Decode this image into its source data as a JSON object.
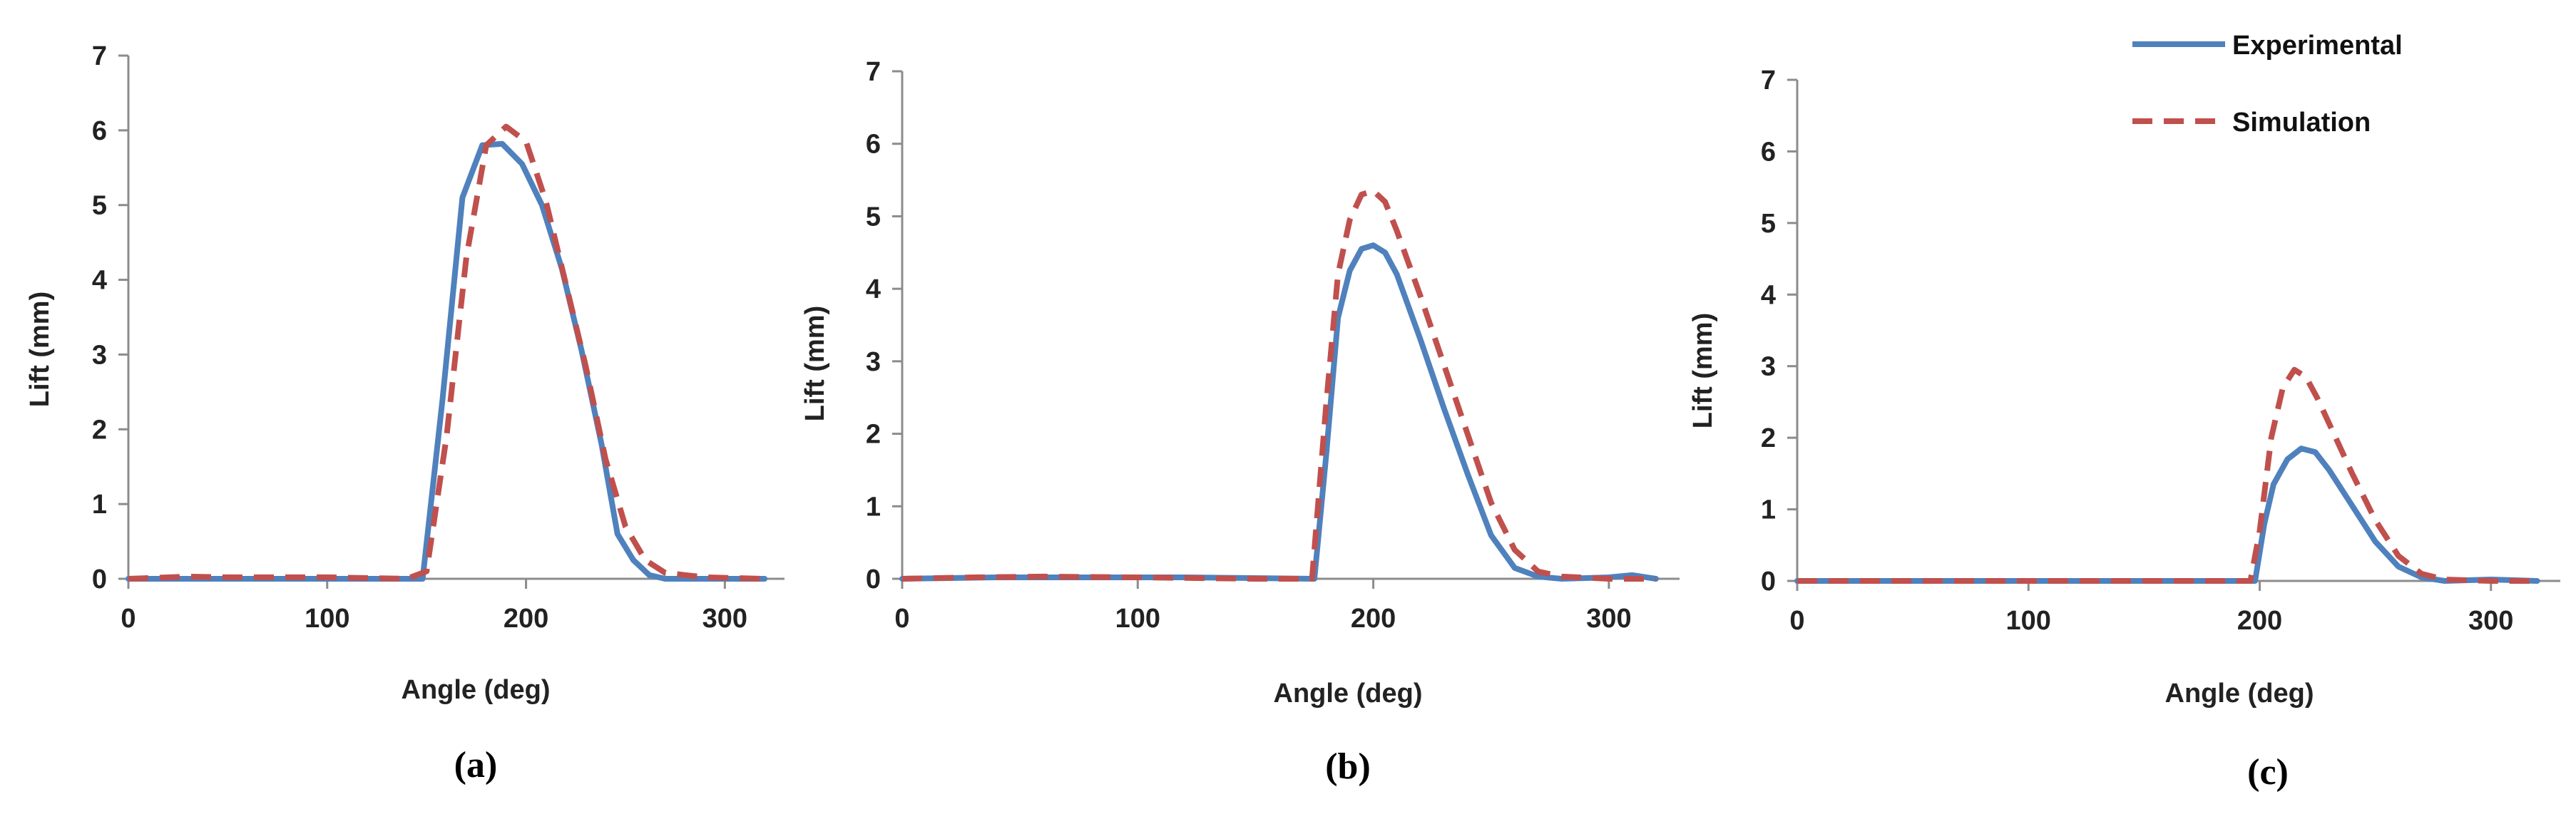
{
  "colors": {
    "experimental": "#4f81bd",
    "simulation": "#c0504d",
    "axis": "#8c8c8c"
  },
  "legend": {
    "position": "top-right",
    "items": [
      {
        "label": "Experimental",
        "style": "solid",
        "color": "#4f81bd"
      },
      {
        "label": "Simulation",
        "style": "dashed",
        "color": "#c0504d"
      }
    ]
  },
  "chart_data": [
    {
      "type": "line",
      "panel_label": "(a)",
      "xlabel": "Angle (deg)",
      "ylabel": "Lift (mm)",
      "xlim": [
        0,
        330
      ],
      "ylim": [
        0,
        7
      ],
      "xticks": [
        "0",
        "100",
        "200",
        "300"
      ],
      "yticks": [
        "0",
        "1",
        "2",
        "3",
        "4",
        "5",
        "6",
        "7"
      ],
      "series": [
        {
          "name": "Experimental",
          "style": "solid",
          "x": [
            0,
            40,
            80,
            100,
            120,
            148,
            158,
            168,
            178,
            188,
            198,
            208,
            218,
            228,
            238,
            246,
            254,
            262,
            270,
            280,
            300,
            320
          ],
          "y": [
            0,
            0,
            0,
            0,
            0,
            0,
            2.4,
            5.1,
            5.8,
            5.82,
            5.55,
            5.0,
            4.15,
            3.05,
            1.8,
            0.6,
            0.25,
            0.05,
            0,
            0,
            0,
            0
          ]
        },
        {
          "name": "Simulation",
          "style": "dashed",
          "x": [
            0,
            30,
            50,
            100,
            140,
            150,
            160,
            170,
            180,
            190,
            200,
            210,
            220,
            230,
            240,
            250,
            260,
            270,
            280,
            290,
            320
          ],
          "y": [
            0,
            0.03,
            0.02,
            0.02,
            0,
            0.1,
            1.9,
            4.3,
            5.8,
            6.05,
            5.85,
            5.05,
            3.95,
            2.85,
            1.6,
            0.7,
            0.25,
            0.08,
            0.05,
            0.02,
            0
          ]
        }
      ]
    },
    {
      "type": "line",
      "panel_label": "(b)",
      "xlabel": "Angle (deg)",
      "ylabel": "Lift (mm)",
      "xlim": [
        0,
        330
      ],
      "ylim": [
        0,
        7
      ],
      "xticks": [
        "0",
        "100",
        "200",
        "300"
      ],
      "yticks": [
        "0",
        "1",
        "2",
        "3",
        "4",
        "5",
        "6",
        "7"
      ],
      "series": [
        {
          "name": "Experimental",
          "style": "solid",
          "x": [
            0,
            40,
            50,
            100,
            120,
            175,
            180,
            185,
            190,
            195,
            200,
            205,
            210,
            220,
            230,
            240,
            250,
            260,
            270,
            280,
            300,
            310,
            320
          ],
          "y": [
            0,
            0.02,
            0.02,
            0.02,
            0.02,
            0,
            1.7,
            3.6,
            4.25,
            4.55,
            4.6,
            4.5,
            4.2,
            3.3,
            2.35,
            1.45,
            0.6,
            0.15,
            0.03,
            0,
            0.02,
            0.05,
            0
          ]
        },
        {
          "name": "Simulation",
          "style": "dashed",
          "x": [
            0,
            30,
            60,
            100,
            150,
            174,
            180,
            185,
            190,
            195,
            200,
            205,
            210,
            220,
            230,
            240,
            250,
            260,
            270,
            280,
            300,
            320
          ],
          "y": [
            0,
            0.02,
            0.03,
            0.02,
            0,
            0,
            2.4,
            4.2,
            4.95,
            5.3,
            5.35,
            5.2,
            4.8,
            3.9,
            2.95,
            2.0,
            1.05,
            0.4,
            0.1,
            0.03,
            0,
            0
          ]
        }
      ]
    },
    {
      "type": "line",
      "panel_label": "(c)",
      "xlabel": "Angle (deg)",
      "ylabel": "Lift (mm)",
      "xlim": [
        0,
        330
      ],
      "ylim": [
        0,
        7
      ],
      "xticks": [
        "0",
        "100",
        "200",
        "300"
      ],
      "yticks": [
        "0",
        "1",
        "2",
        "3",
        "4",
        "5",
        "6",
        "7"
      ],
      "series": [
        {
          "name": "Experimental",
          "style": "solid",
          "x": [
            0,
            50,
            100,
            150,
            198,
            202,
            206,
            212,
            218,
            224,
            230,
            240,
            250,
            260,
            270,
            280,
            300,
            320
          ],
          "y": [
            0,
            0,
            0,
            0,
            0,
            0.8,
            1.35,
            1.7,
            1.85,
            1.8,
            1.55,
            1.05,
            0.55,
            0.2,
            0.05,
            0,
            0.02,
            0
          ]
        },
        {
          "name": "Simulation",
          "style": "dashed",
          "x": [
            0,
            50,
            100,
            150,
            196,
            200,
            205,
            210,
            215,
            220,
            225,
            230,
            240,
            250,
            260,
            270,
            280,
            300,
            320
          ],
          "y": [
            0,
            0,
            0,
            0,
            0,
            0.7,
            2.0,
            2.7,
            2.95,
            2.85,
            2.55,
            2.2,
            1.5,
            0.85,
            0.35,
            0.1,
            0.02,
            0,
            0
          ]
        }
      ]
    }
  ]
}
